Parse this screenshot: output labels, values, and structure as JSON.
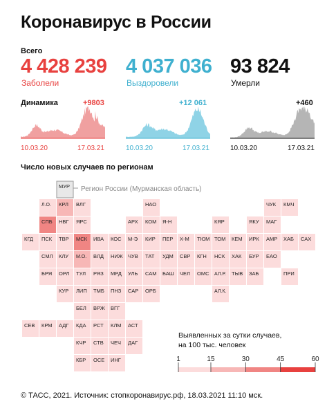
{
  "title": "Коронавирус в России",
  "totals": {
    "label": "Всего",
    "items": [
      {
        "value": "4 428 239",
        "label": "Заболели",
        "color": "#e8413f"
      },
      {
        "value": "4 037 036",
        "label": "Выздоровели",
        "color": "#3fb0cf"
      },
      {
        "value": "93 824",
        "label": "Умерли",
        "color": "#111111"
      }
    ]
  },
  "dynamics": {
    "label": "Динамика",
    "start_date": "10.03.20",
    "end_date": "17.03.21",
    "cards": [
      {
        "name": "cases",
        "delta": "+9803",
        "color": "#e8413f",
        "fill": "#f0a0a0"
      },
      {
        "name": "recovered",
        "delta": "+12 061",
        "color": "#3fb0cf",
        "fill": "#8fd3e6"
      },
      {
        "name": "deaths",
        "delta": "+460",
        "color": "#111111",
        "fill": "#b5b5b5"
      }
    ]
  },
  "regions": {
    "title": "Число новых случаев по регионам",
    "callout": "Регион России (Мурманская область)",
    "tiles": [
      {
        "label": "МУР",
        "level": 0
      },
      {
        "label": "Л.О.",
        "level": 1
      },
      {
        "label": "КРЛ",
        "level": 2
      },
      {
        "label": "ВЛГ",
        "level": 1
      },
      {
        "label": "НАО",
        "level": 1
      },
      {
        "label": "ЧУК",
        "level": 1
      },
      {
        "label": "КМЧ",
        "level": 1
      },
      {
        "label": "СПБ",
        "level": 3
      },
      {
        "label": "НВГ",
        "level": 1
      },
      {
        "label": "ЯРС",
        "level": 1
      },
      {
        "label": "АРХ",
        "level": 1
      },
      {
        "label": "КОМ",
        "level": 1
      },
      {
        "label": "Я-Н",
        "level": 1
      },
      {
        "label": "КЯР",
        "level": 1
      },
      {
        "label": "ЯКУ",
        "level": 1
      },
      {
        "label": "МАГ",
        "level": 1
      },
      {
        "label": "КГД",
        "level": 1
      },
      {
        "label": "ПСК",
        "level": 1
      },
      {
        "label": "ТВР",
        "level": 1
      },
      {
        "label": "МСК",
        "level": 3
      },
      {
        "label": "ИВА",
        "level": 1
      },
      {
        "label": "КОС",
        "level": 1
      },
      {
        "label": "М-Э",
        "level": 1
      },
      {
        "label": "КИР",
        "level": 1
      },
      {
        "label": "ПЕР",
        "level": 1
      },
      {
        "label": "Х-М",
        "level": 1
      },
      {
        "label": "ТЮМ",
        "level": 1
      },
      {
        "label": "ТОМ",
        "level": 1
      },
      {
        "label": "КЕМ",
        "level": 1
      },
      {
        "label": "ИРК",
        "level": 1
      },
      {
        "label": "АМР",
        "level": 1
      },
      {
        "label": "ХАБ",
        "level": 1
      },
      {
        "label": "САХ",
        "level": 1
      },
      {
        "label": "СМЛ",
        "level": 1
      },
      {
        "label": "КЛУ",
        "level": 1
      },
      {
        "label": "М.О.",
        "level": 2
      },
      {
        "label": "ВЛД",
        "level": 1
      },
      {
        "label": "НИЖ",
        "level": 1
      },
      {
        "label": "ЧУВ",
        "level": 1
      },
      {
        "label": "ТАТ",
        "level": 1
      },
      {
        "label": "УДМ",
        "level": 1
      },
      {
        "label": "СВР",
        "level": 1
      },
      {
        "label": "КГН",
        "level": 1
      },
      {
        "label": "НСК",
        "level": 1
      },
      {
        "label": "ХАК",
        "level": 1
      },
      {
        "label": "БУР",
        "level": 1
      },
      {
        "label": "ЕАО",
        "level": 1
      },
      {
        "label": "БРЯ",
        "level": 1
      },
      {
        "label": "ОРЛ",
        "level": 1
      },
      {
        "label": "ТУЛ",
        "level": 1
      },
      {
        "label": "РЯЗ",
        "level": 1
      },
      {
        "label": "МРД",
        "level": 1
      },
      {
        "label": "УЛЬ",
        "level": 1
      },
      {
        "label": "САМ",
        "level": 1
      },
      {
        "label": "БАШ",
        "level": 1
      },
      {
        "label": "ЧЕЛ",
        "level": 1
      },
      {
        "label": "ОМС",
        "level": 1
      },
      {
        "label": "АЛ.Р.",
        "level": 1
      },
      {
        "label": "ТЫВ",
        "level": 1
      },
      {
        "label": "ЗАБ",
        "level": 1
      },
      {
        "label": "ПРИ",
        "level": 1
      },
      {
        "label": "КУР",
        "level": 1
      },
      {
        "label": "ЛИП",
        "level": 1
      },
      {
        "label": "ТМБ",
        "level": 1
      },
      {
        "label": "ПНЗ",
        "level": 1
      },
      {
        "label": "САР",
        "level": 1
      },
      {
        "label": "ОРБ",
        "level": 1
      },
      {
        "label": "АЛ.К.",
        "level": 1
      },
      {
        "label": "БЕЛ",
        "level": 1
      },
      {
        "label": "ВРЖ",
        "level": 1
      },
      {
        "label": "ВГГ",
        "level": 1
      },
      {
        "label": "СЕВ",
        "level": 1
      },
      {
        "label": "КРМ",
        "level": 1
      },
      {
        "label": "АДГ",
        "level": 1
      },
      {
        "label": "КДА",
        "level": 1
      },
      {
        "label": "РСТ",
        "level": 1
      },
      {
        "label": "КЛМ",
        "level": 1
      },
      {
        "label": "АСТ",
        "level": 1
      },
      {
        "label": "КЧР",
        "level": 1
      },
      {
        "label": "СТВ",
        "level": 1
      },
      {
        "label": "ЧЕЧ",
        "level": 1
      },
      {
        "label": "ДАГ",
        "level": 1
      },
      {
        "label": "КБР",
        "level": 1
      },
      {
        "label": "ОСЕ",
        "level": 1
      },
      {
        "label": "ИНГ",
        "level": 1
      }
    ]
  },
  "legend": {
    "description_1": "Выявленных за сутки случаев,",
    "description_2": "на 100 тыс. человек",
    "ticks": [
      1,
      15,
      30,
      45,
      60
    ],
    "colors": [
      "#fcdcdc",
      "#f7b7b6",
      "#f08583",
      "#e8413f"
    ]
  },
  "footer": "© ТАСС, 2021. Источник: стопкоронавирус.рф, 18.03.2021 11:10 мск."
}
